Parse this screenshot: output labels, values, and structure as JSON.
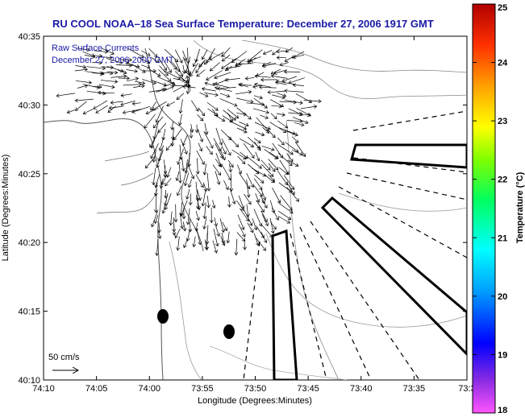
{
  "title": "RU COOL  NOAA–18  Sea Surface Temperature:  December 27, 2006 1917 GMT",
  "overlay": {
    "line1": "Raw Surface Currents",
    "line2": "December 27, 2006 2000 GMT"
  },
  "axes": {
    "xlabel": "Longitude (Degrees:Minutes)",
    "ylabel": "Latitude (Degrees:Minutes)",
    "x_ticks": [
      "74:10",
      "74:05",
      "74:00",
      "73:55",
      "73:50",
      "73:45",
      "73:40",
      "73:35",
      "73:3"
    ],
    "y_ticks": [
      "40:35",
      "40:30",
      "40:25",
      "40:20",
      "40:15",
      "40:10"
    ]
  },
  "scale": {
    "label": "50 cm/s"
  },
  "colorbar": {
    "label": "Temperature (°C)",
    "ticks": [
      "25",
      "24",
      "23",
      "22",
      "21",
      "20",
      "19",
      "18"
    ],
    "colors": [
      "#ff55ff",
      "#8a2be2",
      "#0000ff",
      "#00a0ff",
      "#00ffff",
      "#00ff60",
      "#80ff00",
      "#ffff00",
      "#ffa000",
      "#ff3000",
      "#b00000"
    ]
  }
}
